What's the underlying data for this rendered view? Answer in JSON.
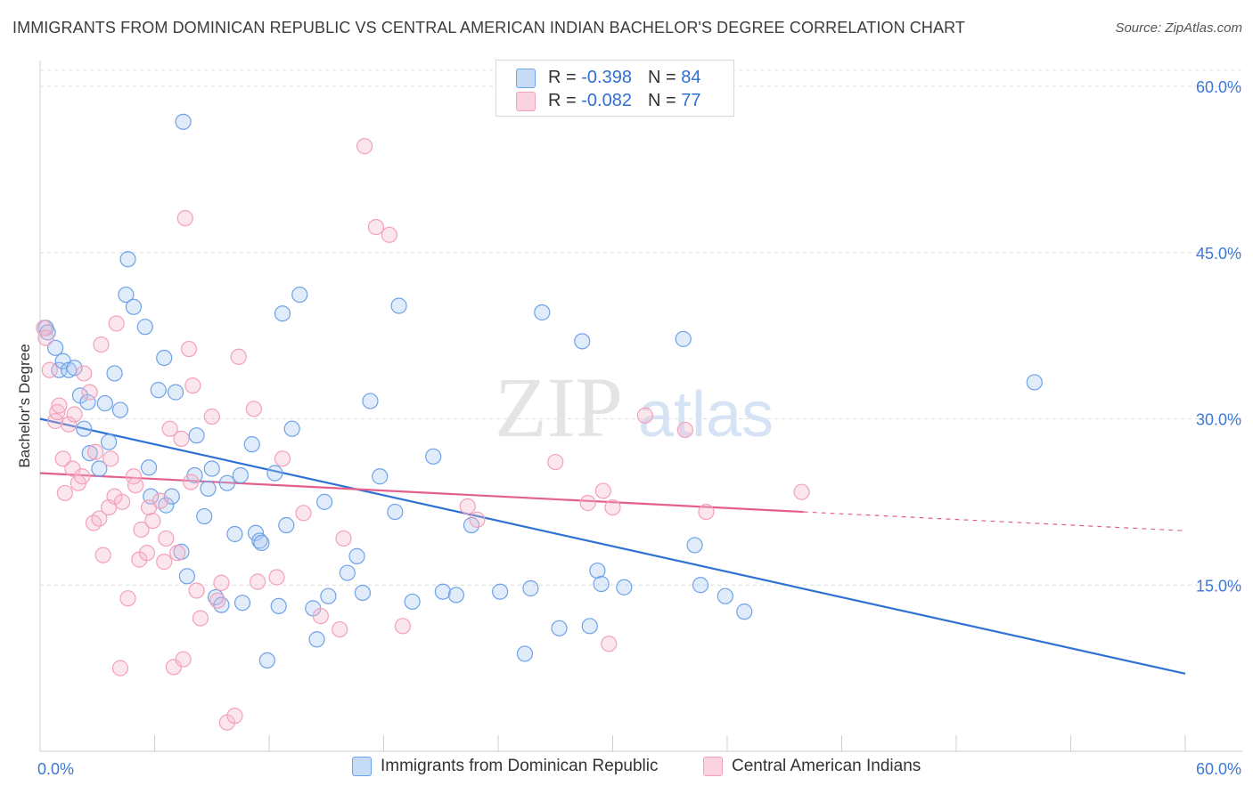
{
  "title": "IMMIGRANTS FROM DOMINICAN REPUBLIC VS CENTRAL AMERICAN INDIAN BACHELOR'S DEGREE CORRELATION CHART",
  "source": "Source: ZipAtlas.com",
  "watermark": "ZIPatlas",
  "legend_top": {
    "rows": [
      {
        "r_label": "R =",
        "r_value": "-0.398",
        "n_label": "N =",
        "n_value": "84",
        "color": "#a9c8f0"
      },
      {
        "r_label": "R =",
        "r_value": "-0.082",
        "n_label": "N =",
        "n_value": "77",
        "color": "#f5b8cb"
      }
    ]
  },
  "legend_bottom": {
    "items": [
      {
        "label": "Immigrants from Dominican Republic",
        "color": "#a9c8f0"
      },
      {
        "label": "Central American Indians",
        "color": "#f5b8cb"
      }
    ]
  },
  "chart_data": {
    "type": "scatter",
    "ylabel": "Bachelor's Degree",
    "xlim": [
      0,
      60
    ],
    "ylim": [
      0,
      60
    ],
    "x_tick_labels": {
      "left": "0.0%",
      "right": "60.0%"
    },
    "y_tick_labels": [
      "15.0%",
      "30.0%",
      "45.0%",
      "60.0%"
    ],
    "y_ticks": [
      15,
      30,
      45,
      60
    ],
    "grid": "horizontal dashed",
    "series": [
      {
        "name": "Immigrants from Dominican Republic",
        "color": "#6ea2e8",
        "trend_color": "#2f72d4",
        "trend": {
          "x0": 0,
          "y0": 30.0,
          "x1": 60,
          "y1": 7.0
        },
        "points": [
          [
            0.3,
            38.2
          ],
          [
            0.4,
            37.8
          ],
          [
            0.8,
            36.4
          ],
          [
            1.0,
            34.4
          ],
          [
            1.2,
            35.2
          ],
          [
            1.5,
            34.4
          ],
          [
            1.8,
            34.6
          ],
          [
            2.1,
            32.1
          ],
          [
            2.5,
            31.5
          ],
          [
            2.3,
            29.1
          ],
          [
            2.6,
            26.9
          ],
          [
            3.1,
            25.5
          ],
          [
            3.6,
            27.9
          ],
          [
            3.4,
            31.4
          ],
          [
            3.9,
            34.1
          ],
          [
            4.2,
            30.8
          ],
          [
            4.6,
            44.4
          ],
          [
            4.5,
            41.2
          ],
          [
            4.9,
            40.1
          ],
          [
            5.5,
            38.3
          ],
          [
            5.7,
            25.6
          ],
          [
            5.8,
            23.0
          ],
          [
            6.2,
            32.6
          ],
          [
            6.5,
            35.5
          ],
          [
            6.6,
            22.2
          ],
          [
            6.9,
            23.0
          ],
          [
            7.1,
            32.4
          ],
          [
            7.4,
            18.0
          ],
          [
            7.5,
            56.8
          ],
          [
            7.7,
            15.8
          ],
          [
            8.1,
            24.9
          ],
          [
            8.2,
            28.5
          ],
          [
            8.6,
            21.2
          ],
          [
            8.8,
            23.7
          ],
          [
            9.0,
            25.5
          ],
          [
            9.2,
            13.9
          ],
          [
            9.5,
            13.2
          ],
          [
            9.8,
            24.2
          ],
          [
            10.2,
            19.6
          ],
          [
            10.5,
            24.9
          ],
          [
            10.6,
            13.4
          ],
          [
            11.1,
            27.7
          ],
          [
            11.3,
            19.7
          ],
          [
            11.5,
            19.0
          ],
          [
            11.6,
            18.8
          ],
          [
            11.9,
            8.2
          ],
          [
            12.3,
            25.1
          ],
          [
            12.5,
            13.1
          ],
          [
            12.7,
            39.5
          ],
          [
            12.9,
            20.4
          ],
          [
            13.2,
            29.1
          ],
          [
            13.6,
            41.2
          ],
          [
            14.3,
            12.9
          ],
          [
            14.5,
            10.1
          ],
          [
            14.9,
            22.5
          ],
          [
            15.1,
            14.0
          ],
          [
            16.1,
            16.1
          ],
          [
            16.6,
            17.6
          ],
          [
            16.9,
            14.3
          ],
          [
            17.3,
            31.6
          ],
          [
            17.8,
            24.8
          ],
          [
            18.6,
            21.6
          ],
          [
            18.8,
            40.2
          ],
          [
            19.5,
            13.5
          ],
          [
            20.6,
            26.6
          ],
          [
            21.1,
            14.4
          ],
          [
            21.8,
            14.1
          ],
          [
            22.6,
            20.4
          ],
          [
            24.1,
            14.4
          ],
          [
            25.4,
            8.8
          ],
          [
            25.7,
            14.7
          ],
          [
            26.3,
            39.6
          ],
          [
            27.2,
            11.1
          ],
          [
            28.4,
            37.0
          ],
          [
            28.8,
            11.3
          ],
          [
            29.2,
            16.3
          ],
          [
            29.4,
            15.1
          ],
          [
            30.6,
            14.8
          ],
          [
            33.7,
            37.2
          ],
          [
            34.3,
            18.6
          ],
          [
            34.6,
            15.0
          ],
          [
            35.9,
            14.0
          ],
          [
            36.9,
            12.6
          ],
          [
            52.1,
            33.3
          ]
        ]
      },
      {
        "name": "Central American Indians",
        "color": "#f2a1bb",
        "trend_color": "#e3608a",
        "trend": {
          "x0": 0,
          "y0": 25.1,
          "x1": 40,
          "y1": 21.6
        },
        "trend_dashed_to": {
          "x": 60,
          "y": 19.9
        },
        "points": [
          [
            0.2,
            38.2
          ],
          [
            0.3,
            37.3
          ],
          [
            0.5,
            34.4
          ],
          [
            0.8,
            29.8
          ],
          [
            0.9,
            30.6
          ],
          [
            1.0,
            31.2
          ],
          [
            1.2,
            26.4
          ],
          [
            1.3,
            23.3
          ],
          [
            1.5,
            29.5
          ],
          [
            1.7,
            25.5
          ],
          [
            1.8,
            30.4
          ],
          [
            2.0,
            24.2
          ],
          [
            2.2,
            24.8
          ],
          [
            2.3,
            34.1
          ],
          [
            2.6,
            32.4
          ],
          [
            2.8,
            20.6
          ],
          [
            2.9,
            27.0
          ],
          [
            3.1,
            21.0
          ],
          [
            3.2,
            36.7
          ],
          [
            3.3,
            17.7
          ],
          [
            3.6,
            22.0
          ],
          [
            3.7,
            26.4
          ],
          [
            3.9,
            23.0
          ],
          [
            4.0,
            38.6
          ],
          [
            4.2,
            7.5
          ],
          [
            4.3,
            22.5
          ],
          [
            4.6,
            13.8
          ],
          [
            4.9,
            24.8
          ],
          [
            5.0,
            24.0
          ],
          [
            5.2,
            17.3
          ],
          [
            5.3,
            20.0
          ],
          [
            5.6,
            17.9
          ],
          [
            5.7,
            22.0
          ],
          [
            5.9,
            20.8
          ],
          [
            6.3,
            22.6
          ],
          [
            6.5,
            17.1
          ],
          [
            6.6,
            19.2
          ],
          [
            6.8,
            29.1
          ],
          [
            7.0,
            7.6
          ],
          [
            7.2,
            17.9
          ],
          [
            7.4,
            28.2
          ],
          [
            7.5,
            8.3
          ],
          [
            7.6,
            48.1
          ],
          [
            7.8,
            36.3
          ],
          [
            7.9,
            24.3
          ],
          [
            8.0,
            33.0
          ],
          [
            8.2,
            14.5
          ],
          [
            8.4,
            12.0
          ],
          [
            9.0,
            30.2
          ],
          [
            9.3,
            13.6
          ],
          [
            9.5,
            15.2
          ],
          [
            9.8,
            2.6
          ],
          [
            10.2,
            3.2
          ],
          [
            10.4,
            35.6
          ],
          [
            11.2,
            30.9
          ],
          [
            11.4,
            15.3
          ],
          [
            12.4,
            15.7
          ],
          [
            12.7,
            26.4
          ],
          [
            13.8,
            21.5
          ],
          [
            14.7,
            12.2
          ],
          [
            15.7,
            11.0
          ],
          [
            15.9,
            19.2
          ],
          [
            17.0,
            54.6
          ],
          [
            17.6,
            47.3
          ],
          [
            18.3,
            46.6
          ],
          [
            19.0,
            11.3
          ],
          [
            22.4,
            22.1
          ],
          [
            22.9,
            20.9
          ],
          [
            27.0,
            26.1
          ],
          [
            28.7,
            22.4
          ],
          [
            29.5,
            23.5
          ],
          [
            29.8,
            9.7
          ],
          [
            30.0,
            22.0
          ],
          [
            31.7,
            30.3
          ],
          [
            33.8,
            29.0
          ],
          [
            34.9,
            21.6
          ],
          [
            39.9,
            23.4
          ]
        ]
      }
    ]
  }
}
